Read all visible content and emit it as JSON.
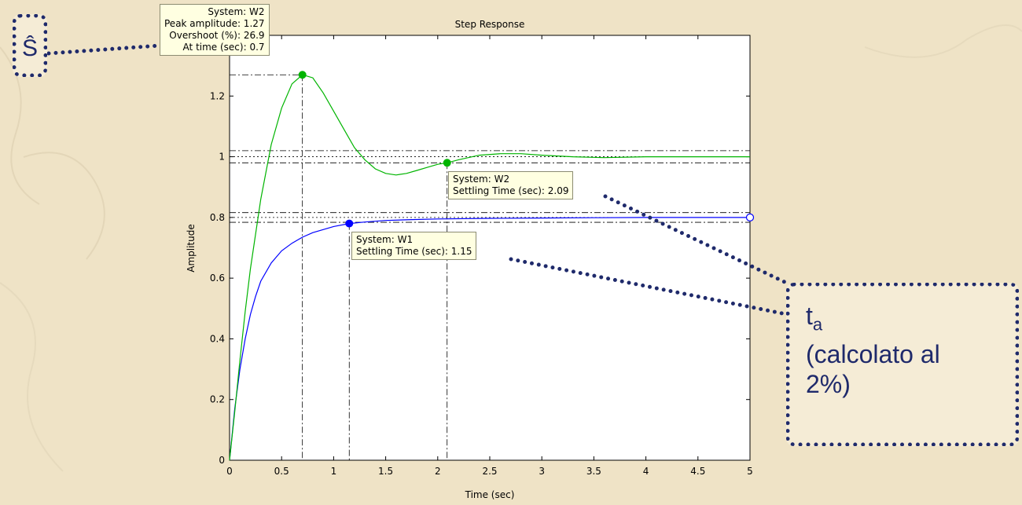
{
  "callouts": {
    "s_hat": "Ŝ",
    "ta_symbol": "t",
    "ta_subscript": "a",
    "ta_line1": "(calcolato al",
    "ta_line2": "2%)"
  },
  "datatips": {
    "peak": [
      "System: W2",
      "Peak amplitude: 1.27",
      "Overshoot (%): 26.9",
      "At time (sec): 0.7"
    ],
    "settle_w2": [
      "System: W2",
      "Settling Time (sec): 2.09"
    ],
    "settle_w1": [
      "System: W1",
      "Settling Time (sec): 1.15"
    ]
  },
  "colors": {
    "background": "#efe3c6",
    "callout": "#1f2a6b",
    "w1": "#0000ff",
    "w2": "#00b400",
    "datatip": "#ffffe1"
  },
  "chart_data": {
    "type": "line",
    "title": "Step Response",
    "xlabel": "Time (sec)",
    "ylabel": "Amplitude",
    "xlim": [
      0,
      5
    ],
    "ylim": [
      0,
      1.4
    ],
    "xticks": [
      0,
      0.5,
      1,
      1.5,
      2,
      2.5,
      3,
      3.5,
      4,
      4.5,
      5
    ],
    "yticks": [
      0,
      0.2,
      0.4,
      0.6,
      0.8,
      1,
      1.2
    ],
    "grid": false,
    "series": [
      {
        "name": "W1",
        "color": "#0000ff",
        "x": [
          0,
          0.05,
          0.1,
          0.15,
          0.2,
          0.25,
          0.3,
          0.4,
          0.5,
          0.6,
          0.7,
          0.8,
          0.9,
          1.0,
          1.15,
          1.3,
          1.5,
          1.75,
          2,
          2.5,
          3,
          3.5,
          4,
          4.5,
          5
        ],
        "y": [
          0,
          0.17,
          0.3,
          0.4,
          0.48,
          0.54,
          0.59,
          0.65,
          0.69,
          0.715,
          0.735,
          0.75,
          0.76,
          0.77,
          0.78,
          0.785,
          0.79,
          0.793,
          0.795,
          0.797,
          0.798,
          0.799,
          0.8,
          0.8,
          0.8
        ]
      },
      {
        "name": "W2",
        "color": "#00b400",
        "x": [
          0,
          0.05,
          0.1,
          0.15,
          0.2,
          0.3,
          0.4,
          0.5,
          0.6,
          0.7,
          0.8,
          0.9,
          1.0,
          1.1,
          1.2,
          1.3,
          1.4,
          1.5,
          1.6,
          1.7,
          1.8,
          1.9,
          2.0,
          2.09,
          2.2,
          2.4,
          2.6,
          2.8,
          3.0,
          3.3,
          3.6,
          4.0,
          4.5,
          5
        ],
        "y": [
          0,
          0.16,
          0.33,
          0.49,
          0.63,
          0.86,
          1.04,
          1.16,
          1.24,
          1.27,
          1.26,
          1.21,
          1.15,
          1.09,
          1.03,
          0.99,
          0.96,
          0.945,
          0.94,
          0.945,
          0.955,
          0.965,
          0.975,
          0.98,
          0.99,
          1.005,
          1.01,
          1.01,
          1.005,
          1.0,
          0.997,
          1.0,
          1.0,
          1.0
        ]
      }
    ],
    "markers": {
      "peak_w2": [
        0.7,
        1.27
      ],
      "settle_w2": [
        2.09,
        0.98
      ],
      "settle_w1": [
        1.15,
        0.78
      ],
      "end_w1": [
        5,
        0.8
      ]
    },
    "settling_bands": [
      {
        "center": 1.0,
        "lines": [
          0.98,
          1.0,
          1.02
        ]
      },
      {
        "center": 0.8,
        "lines": [
          0.784,
          0.8,
          0.816
        ]
      }
    ]
  }
}
